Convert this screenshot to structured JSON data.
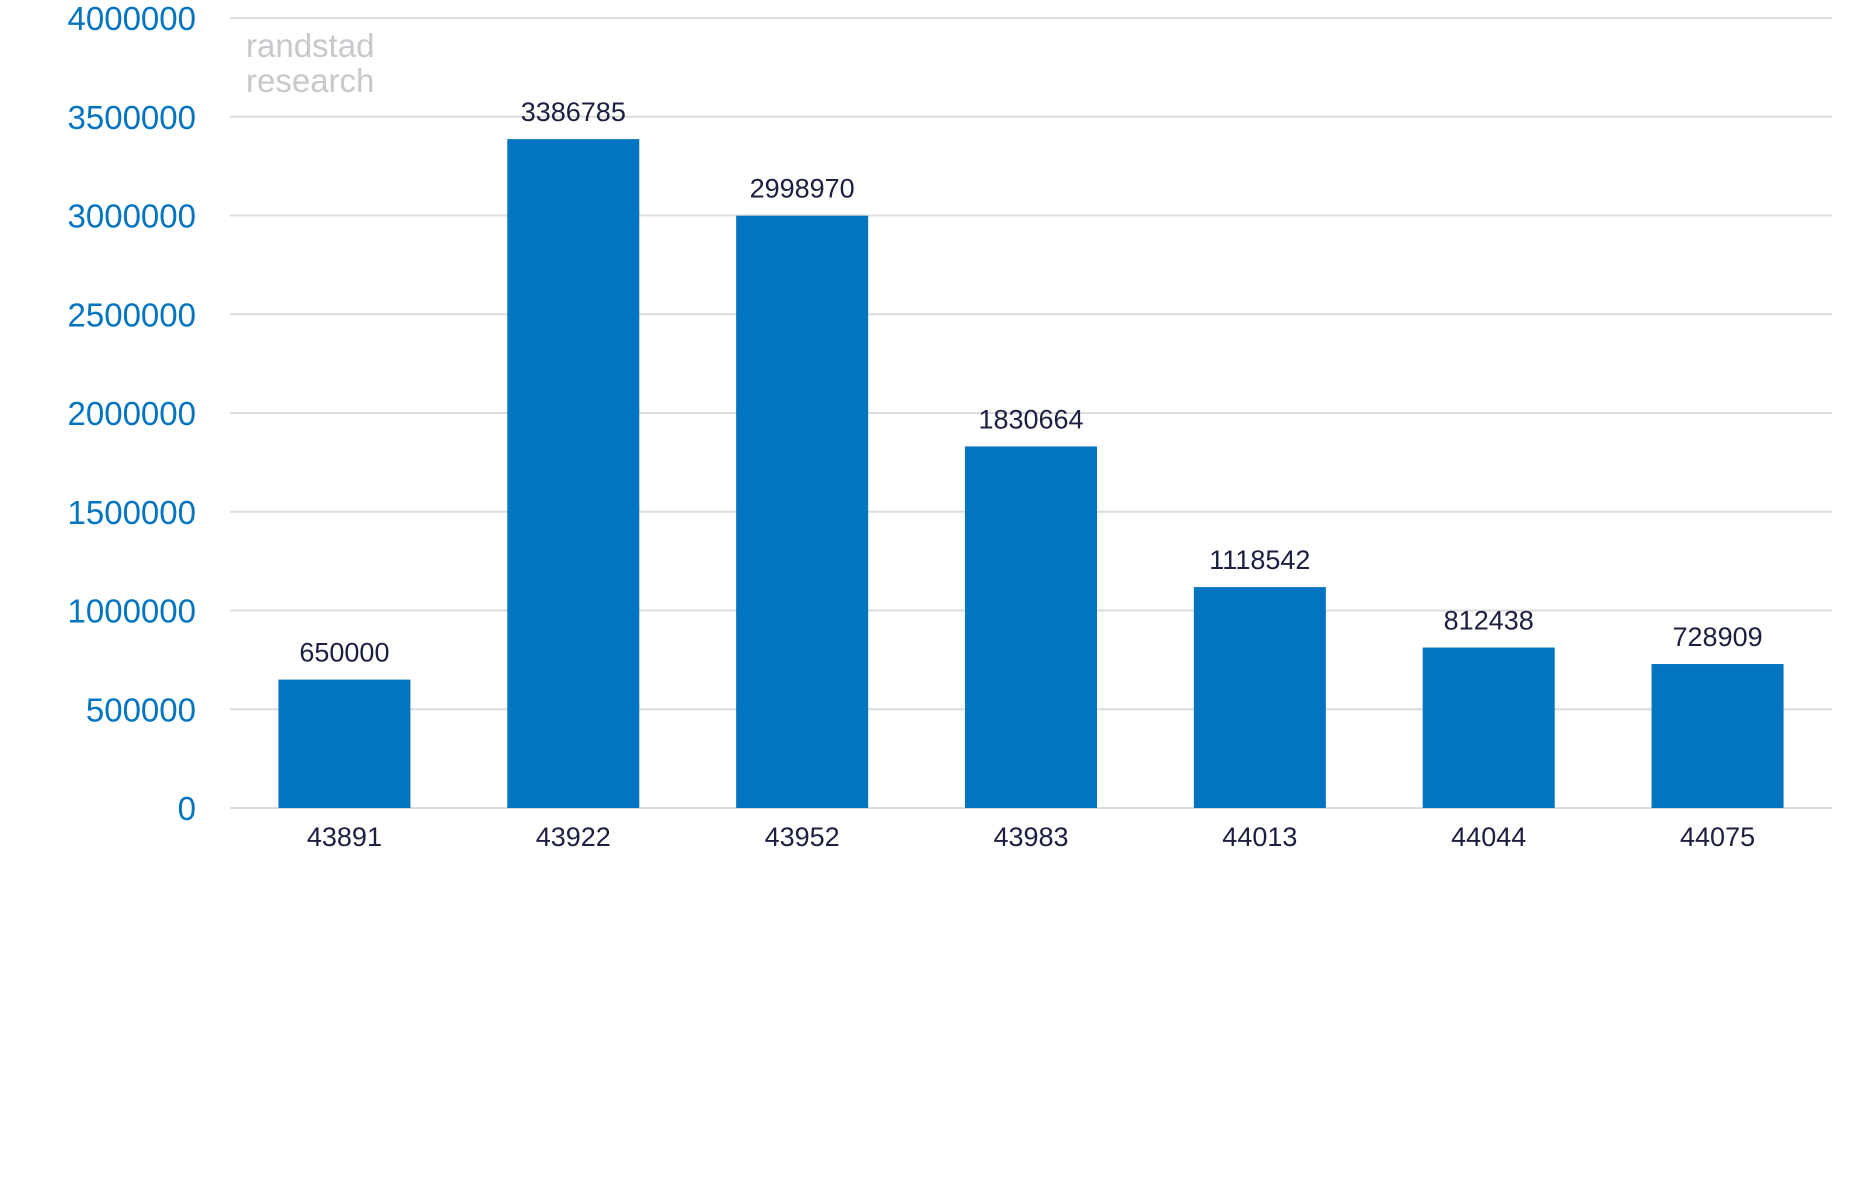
{
  "chart_data": {
    "type": "bar",
    "title": "",
    "xlabel": "",
    "ylabel": "",
    "categories": [
      "43891",
      "43922",
      "43952",
      "43983",
      "44013",
      "44044",
      "44075"
    ],
    "values": [
      650000,
      3386785,
      2998970,
      1830664,
      1118542,
      812438,
      728909
    ],
    "data_labels": [
      "650000",
      "3386785",
      "2998970",
      "1830664",
      "1118542",
      "812438",
      "728909"
    ],
    "ylim": [
      0,
      4000000
    ],
    "yticks": [
      0,
      500000,
      1000000,
      1500000,
      2000000,
      2500000,
      3000000,
      3500000,
      4000000
    ],
    "ytick_labels": [
      "0",
      "500000",
      "1000000",
      "1500000",
      "2000000",
      "2500000",
      "3000000",
      "3500000",
      "4000000"
    ],
    "grid": true,
    "legend": "none"
  },
  "watermark": {
    "line1": "randstad",
    "line2": "research"
  },
  "colors": {
    "bar": "#0274c0",
    "ytick_text": "#0274c0",
    "xtick_text": "#1c1f3f",
    "data_label_text": "#1c1f3f",
    "grid": "#dcdcdc",
    "watermark": "#c6c8cc"
  }
}
